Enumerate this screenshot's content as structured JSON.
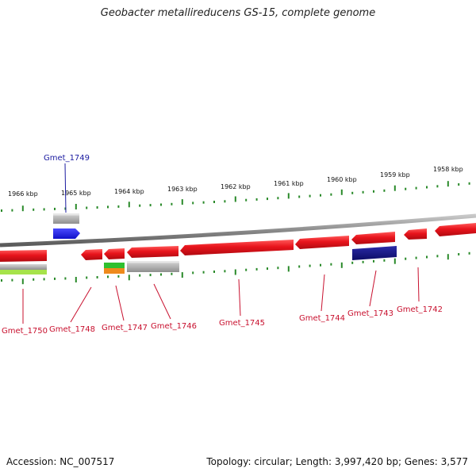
{
  "title": "Geobacter metallireducens GS-15, complete genome",
  "footer": {
    "accession": "Accession: NC_007517",
    "summary": "Topology: circular; Length: 3,997,420 bp; Genes: 3,577"
  },
  "colors": {
    "backbone": "#8a8a8a",
    "forward_cds": "#e8141c",
    "other_gene": "#b4b4b4",
    "misc_feature": "#1f1fe6",
    "dark_feature": "#1a1a8c",
    "green_feature": "#2fc02f",
    "orange_feature": "#ee8a1c",
    "lime_feature": "#a6e34a",
    "tick": "#2a8a2a",
    "label_red": "#c8102e",
    "label_blue": "#1a1aa0"
  },
  "scale_labels": [
    "1966 kbp",
    "1965 kbp",
    "1964 kbp",
    "1963 kbp",
    "1962 kbp",
    "1961 kbp",
    "1960 kbp",
    "1959 kbp",
    "1958 kbp"
  ],
  "gene_labels": [
    {
      "name": "Gmet_1749",
      "color": "blue"
    },
    {
      "name": "Gmet_1750",
      "color": "red"
    },
    {
      "name": "Gmet_1748",
      "color": "red"
    },
    {
      "name": "Gmet_1747",
      "color": "red"
    },
    {
      "name": "Gmet_1746",
      "color": "red"
    },
    {
      "name": "Gmet_1745",
      "color": "red"
    },
    {
      "name": "Gmet_1744",
      "color": "red"
    },
    {
      "name": "Gmet_1743",
      "color": "red"
    },
    {
      "name": "Gmet_1742",
      "color": "red"
    }
  ]
}
